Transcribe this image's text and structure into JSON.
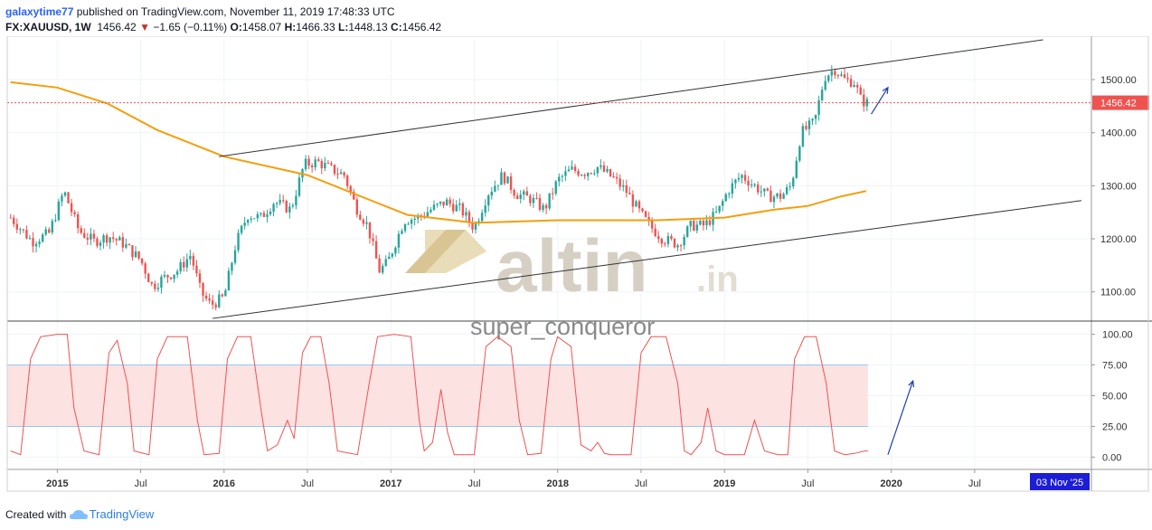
{
  "header": {
    "user": "galaxytime77",
    "published_text": "published on TradingView.com, November 11, 2019 17:48:33 UTC",
    "symbol": "FX:XAUUSD, 1W",
    "last": "1456.42",
    "change_arrow": "▼",
    "change": "−1.65 (−0.11%)",
    "o_label": "O:",
    "o_value": "1458.07",
    "h_label": "H:",
    "h_value": "1466.33",
    "l_label": "L:",
    "l_value": "1448.13",
    "c_label": "C:",
    "c_value": "1456.42"
  },
  "footer": {
    "created_with": "Created with",
    "brand": "TradingView"
  },
  "watermark": {
    "logo_text": "altin",
    "logo_suffix": ".in",
    "author": "super_conqueror"
  },
  "colors": {
    "up": "#26a69a",
    "down": "#ef5350",
    "ma": "#f59e0b",
    "stoch": "#ef5350",
    "band": "#fde2e2",
    "bandline": "#90caf9",
    "arrow": "#1e40af",
    "price_tag": "#ef5350",
    "date_tag": "#1d1dd6"
  },
  "chart_data": [
    {
      "type": "candlestick",
      "symbol": "FX:XAUUSD",
      "interval": "1W",
      "price_label": "1456.42",
      "y_ticks": [
        1100,
        1200,
        1300,
        1400,
        1500
      ],
      "y_tick_labels": [
        "1100.00",
        "1200.00",
        "1300.00",
        "1400.00",
        "1500.00"
      ],
      "ylim": [
        1045,
        1575
      ],
      "x_ticks": [
        {
          "label": "2015",
          "t": 2015.0
        },
        {
          "label": "Jul",
          "t": 2015.5
        },
        {
          "label": "2016",
          "t": 2016.0
        },
        {
          "label": "Jul",
          "t": 2016.5
        },
        {
          "label": "2017",
          "t": 2017.0
        },
        {
          "label": "Jul",
          "t": 2017.5
        },
        {
          "label": "2018",
          "t": 2018.0
        },
        {
          "label": "Jul",
          "t": 2018.5
        },
        {
          "label": "2019",
          "t": 2019.0
        },
        {
          "label": "Jul",
          "t": 2019.5
        },
        {
          "label": "2020",
          "t": 2020.0
        },
        {
          "label": "Jul",
          "t": 2020.5
        }
      ],
      "date_label": "03 Nov '25",
      "xlim": [
        2014.7,
        2021.2
      ],
      "close_path": [
        [
          2014.72,
          1240
        ],
        [
          2014.85,
          1195
        ],
        [
          2014.95,
          1210
        ],
        [
          2015.04,
          1290
        ],
        [
          2015.13,
          1215
        ],
        [
          2015.22,
          1195
        ],
        [
          2015.31,
          1205
        ],
        [
          2015.4,
          1190
        ],
        [
          2015.5,
          1160
        ],
        [
          2015.57,
          1110
        ],
        [
          2015.63,
          1125
        ],
        [
          2015.72,
          1140
        ],
        [
          2015.8,
          1170
        ],
        [
          2015.86,
          1100
        ],
        [
          2015.92,
          1075
        ],
        [
          2016.0,
          1090
        ],
        [
          2016.07,
          1190
        ],
        [
          2016.14,
          1245
        ],
        [
          2016.22,
          1240
        ],
        [
          2016.3,
          1270
        ],
        [
          2016.4,
          1255
        ],
        [
          2016.48,
          1340
        ],
        [
          2016.56,
          1345
        ],
        [
          2016.65,
          1330
        ],
        [
          2016.72,
          1320
        ],
        [
          2016.79,
          1260
        ],
        [
          2016.86,
          1225
        ],
        [
          2016.93,
          1140
        ],
        [
          2016.98,
          1155
        ],
        [
          2017.08,
          1235
        ],
        [
          2017.16,
          1240
        ],
        [
          2017.24,
          1255
        ],
        [
          2017.33,
          1270
        ],
        [
          2017.42,
          1255
        ],
        [
          2017.5,
          1220
        ],
        [
          2017.58,
          1285
        ],
        [
          2017.67,
          1320
        ],
        [
          2017.75,
          1285
        ],
        [
          2017.84,
          1275
        ],
        [
          2017.92,
          1255
        ],
        [
          2018.0,
          1310
        ],
        [
          2018.08,
          1330
        ],
        [
          2018.16,
          1325
        ],
        [
          2018.24,
          1335
        ],
        [
          2018.33,
          1315
        ],
        [
          2018.41,
          1290
        ],
        [
          2018.48,
          1255
        ],
        [
          2018.55,
          1225
        ],
        [
          2018.63,
          1200
        ],
        [
          2018.72,
          1190
        ],
        [
          2018.8,
          1225
        ],
        [
          2018.88,
          1225
        ],
        [
          2018.96,
          1250
        ],
        [
          2019.02,
          1290
        ],
        [
          2019.1,
          1320
        ],
        [
          2019.18,
          1300
        ],
        [
          2019.26,
          1280
        ],
        [
          2019.34,
          1280
        ],
        [
          2019.4,
          1300
        ],
        [
          2019.46,
          1400
        ],
        [
          2019.54,
          1420
        ],
        [
          2019.6,
          1505
        ],
        [
          2019.66,
          1520
        ],
        [
          2019.72,
          1500
        ],
        [
          2019.78,
          1495
        ],
        [
          2019.82,
          1460
        ],
        [
          2019.86,
          1456
        ]
      ],
      "ma_path": [
        [
          2014.72,
          1495
        ],
        [
          2015.0,
          1485
        ],
        [
          2015.3,
          1455
        ],
        [
          2015.6,
          1405
        ],
        [
          2016.0,
          1355
        ],
        [
          2016.5,
          1320
        ],
        [
          2016.9,
          1270
        ],
        [
          2017.1,
          1245
        ],
        [
          2017.5,
          1230
        ],
        [
          2018.0,
          1235
        ],
        [
          2018.6,
          1235
        ],
        [
          2019.0,
          1240
        ],
        [
          2019.3,
          1255
        ],
        [
          2019.5,
          1262
        ],
        [
          2019.7,
          1280
        ],
        [
          2019.85,
          1290
        ]
      ],
      "trendlines": [
        {
          "from": [
            2015.97,
            1355
          ],
          "to": [
            2020.91,
            1575
          ]
        },
        {
          "from": [
            2015.93,
            1050
          ],
          "to": [
            2021.14,
            1272
          ]
        }
      ],
      "arrow": {
        "from": [
          2019.88,
          1435
        ],
        "to": [
          219.98,
          1485
        ]
      }
    },
    {
      "type": "line",
      "indicator": "stochastic",
      "y_ticks": [
        0,
        25,
        50,
        75,
        100
      ],
      "y_tick_labels": [
        "0.00",
        "25.00",
        "50.00",
        "75.00",
        "100.00"
      ],
      "ylim": [
        -10,
        110
      ],
      "band": [
        25,
        75
      ],
      "path": [
        [
          2014.72,
          5
        ],
        [
          2014.78,
          2
        ],
        [
          2014.84,
          80
        ],
        [
          2014.9,
          98
        ],
        [
          2015.0,
          100
        ],
        [
          2015.06,
          100
        ],
        [
          2015.1,
          40
        ],
        [
          2015.16,
          5
        ],
        [
          2015.25,
          2
        ],
        [
          2015.31,
          85
        ],
        [
          2015.36,
          95
        ],
        [
          2015.42,
          60
        ],
        [
          2015.46,
          5
        ],
        [
          2015.55,
          2
        ],
        [
          2015.6,
          80
        ],
        [
          2015.66,
          98
        ],
        [
          2015.78,
          98
        ],
        [
          2015.84,
          30
        ],
        [
          2015.88,
          2
        ],
        [
          2015.97,
          3
        ],
        [
          2016.02,
          80
        ],
        [
          2016.08,
          98
        ],
        [
          2016.16,
          98
        ],
        [
          2016.22,
          40
        ],
        [
          2016.26,
          5
        ],
        [
          2016.32,
          10
        ],
        [
          2016.38,
          30
        ],
        [
          2016.42,
          15
        ],
        [
          2016.47,
          85
        ],
        [
          2016.52,
          98
        ],
        [
          2016.58,
          98
        ],
        [
          2016.63,
          60
        ],
        [
          2016.68,
          5
        ],
        [
          2016.8,
          2
        ],
        [
          2016.87,
          60
        ],
        [
          2016.92,
          98
        ],
        [
          2017.02,
          100
        ],
        [
          2017.12,
          98
        ],
        [
          2017.17,
          30
        ],
        [
          2017.2,
          5
        ],
        [
          2017.25,
          12
        ],
        [
          2017.3,
          55
        ],
        [
          2017.34,
          20
        ],
        [
          2017.38,
          2
        ],
        [
          2017.5,
          2
        ],
        [
          2017.57,
          90
        ],
        [
          2017.64,
          98
        ],
        [
          2017.72,
          90
        ],
        [
          2017.77,
          30
        ],
        [
          2017.82,
          2
        ],
        [
          2017.9,
          3
        ],
        [
          2017.96,
          80
        ],
        [
          2018.0,
          98
        ],
        [
          2018.08,
          90
        ],
        [
          2018.14,
          10
        ],
        [
          2018.2,
          5
        ],
        [
          2018.24,
          12
        ],
        [
          2018.28,
          3
        ],
        [
          2018.32,
          2
        ],
        [
          2018.44,
          2
        ],
        [
          2018.5,
          85
        ],
        [
          2018.56,
          98
        ],
        [
          2018.65,
          98
        ],
        [
          2018.72,
          60
        ],
        [
          2018.76,
          5
        ],
        [
          2018.8,
          2
        ],
        [
          2018.86,
          12
        ],
        [
          2018.9,
          40
        ],
        [
          2018.95,
          5
        ],
        [
          2019.0,
          2
        ],
        [
          2019.12,
          2
        ],
        [
          2019.18,
          30
        ],
        [
          2019.24,
          5
        ],
        [
          2019.32,
          2
        ],
        [
          2019.38,
          2
        ],
        [
          2019.42,
          80
        ],
        [
          2019.48,
          98
        ],
        [
          2019.55,
          98
        ],
        [
          2019.61,
          60
        ],
        [
          2019.66,
          5
        ],
        [
          2019.72,
          2
        ],
        [
          2019.78,
          3
        ],
        [
          2019.84,
          5
        ],
        [
          2019.86,
          5
        ]
      ],
      "arrow": {
        "from": [
          2019.98,
          2
        ],
        "to": [
          2020.13,
          62
        ]
      }
    }
  ]
}
